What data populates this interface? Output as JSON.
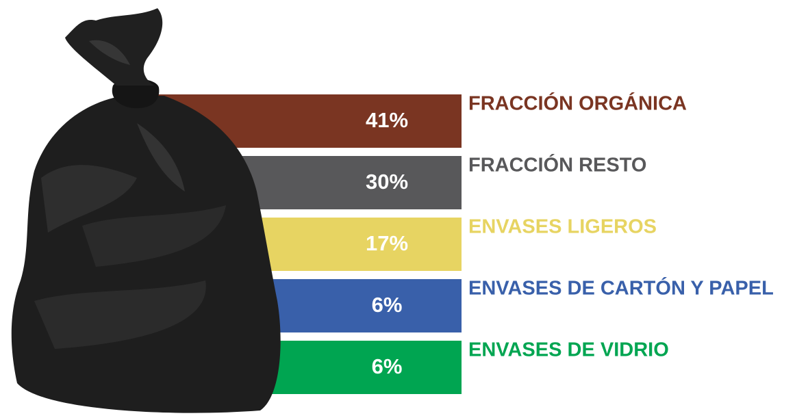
{
  "items": [
    {
      "label": "FRACCIÓN ORGÁNICA",
      "percent": "41%",
      "color": "#7a3522"
    },
    {
      "label": "FRACCIÓN RESTO",
      "percent": "30%",
      "color": "#58585a"
    },
    {
      "label": "ENVASES LIGEROS",
      "percent": "17%",
      "color": "#e7d462"
    },
    {
      "label": "ENVASES DE CARTÓN Y PAPEL",
      "percent": "6%",
      "color": "#3960aa"
    },
    {
      "label": "ENVASES DE VIDRIO",
      "percent": "6%",
      "color": "#00a551"
    }
  ]
}
